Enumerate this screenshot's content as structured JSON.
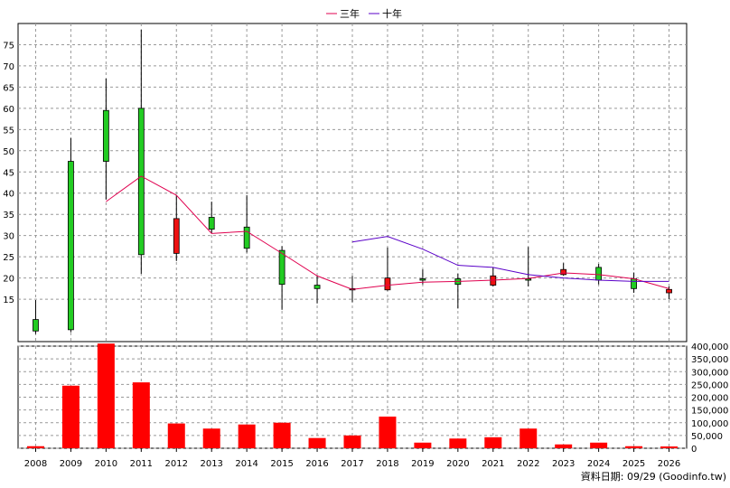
{
  "chart_data": {
    "type": "candlestick+bar",
    "legend": {
      "position": "top-center",
      "items": [
        {
          "label": "三年",
          "color": "#e0004f"
        },
        {
          "label": "十年",
          "color": "#5a00c8"
        }
      ]
    },
    "categories": [
      "2008",
      "2009",
      "2010",
      "2011",
      "2012",
      "2013",
      "2014",
      "2015",
      "2016",
      "2017",
      "2018",
      "2019",
      "2020",
      "2021",
      "2022",
      "2023",
      "2024",
      "2025",
      "2026"
    ],
    "price": {
      "ylim": [
        5,
        80
      ],
      "ticks": [
        15,
        20,
        25,
        30,
        35,
        40,
        45,
        50,
        55,
        60,
        65,
        70,
        75
      ],
      "grid": true,
      "candles": [
        {
          "open": 7.5,
          "high": 14.8,
          "low": 6.8,
          "close": 10.2
        },
        {
          "open": 7.8,
          "high": 53.0,
          "low": 7.2,
          "close": 47.5
        },
        {
          "open": 47.5,
          "high": 67.0,
          "low": 38.5,
          "close": 59.5
        },
        {
          "open": 25.5,
          "high": 78.5,
          "low": 21.0,
          "close": 60.0
        },
        {
          "open": 34.0,
          "high": 39.5,
          "low": 24.0,
          "close": 25.8
        },
        {
          "open": 31.5,
          "high": 38.0,
          "low": 30.5,
          "close": 34.3
        },
        {
          "open": 27.0,
          "high": 39.5,
          "low": 26.0,
          "close": 32.0
        },
        {
          "open": 18.5,
          "high": 27.5,
          "low": 12.5,
          "close": 26.5
        },
        {
          "open": 17.5,
          "high": 20.5,
          "low": 14.0,
          "close": 18.3
        },
        {
          "open": 17.3,
          "high": 20.5,
          "low": 14.3,
          "close": 17.5
        },
        {
          "open": 20.0,
          "high": 27.2,
          "low": 17.0,
          "close": 17.2
        },
        {
          "open": 19.5,
          "high": 22.0,
          "low": 18.5,
          "close": 19.8
        },
        {
          "open": 18.5,
          "high": 21.0,
          "low": 12.8,
          "close": 19.8
        },
        {
          "open": 20.5,
          "high": 22.5,
          "low": 18.0,
          "close": 18.3
        },
        {
          "open": 19.8,
          "high": 27.3,
          "low": 18.0,
          "close": 19.8
        },
        {
          "open": 22.0,
          "high": 23.5,
          "low": 20.5,
          "close": 20.8
        },
        {
          "open": 19.5,
          "high": 23.3,
          "low": 18.5,
          "close": 22.5
        },
        {
          "open": 17.5,
          "high": 21.3,
          "low": 16.5,
          "close": 19.8
        },
        {
          "open": 17.3,
          "high": 18.0,
          "low": 15.0,
          "close": 16.5
        }
      ],
      "series": [
        {
          "name": "三年",
          "color": "#e0004f",
          "values": [
            null,
            null,
            38.0,
            44.0,
            39.5,
            30.5,
            31.0,
            25.8,
            20.5,
            17.3,
            18.3,
            19.0,
            19.2,
            19.5,
            19.9,
            21.2,
            20.8,
            19.8,
            17.5
          ]
        },
        {
          "name": "十年",
          "color": "#5a00c8",
          "values": [
            null,
            null,
            null,
            null,
            null,
            null,
            null,
            null,
            null,
            28.5,
            29.8,
            26.8,
            23.0,
            22.5,
            20.8,
            20.0,
            19.5,
            19.2,
            19.2
          ]
        }
      ]
    },
    "volume": {
      "ylim": [
        0,
        400000
      ],
      "ticks": [
        "0",
        "50,000",
        "100,000",
        "150,000",
        "200,000",
        "250,000",
        "300,000",
        "350,000",
        "400,000"
      ],
      "values": [
        8000,
        245000,
        410000,
        258000,
        97000,
        77000,
        93000,
        100000,
        40000,
        50000,
        124000,
        22000,
        38000,
        43000,
        77000,
        15000,
        22000,
        8000,
        7000
      ],
      "color": "#ff0000"
    },
    "footer": "資料日期: 09/29  (Goodinfo.tw)"
  }
}
